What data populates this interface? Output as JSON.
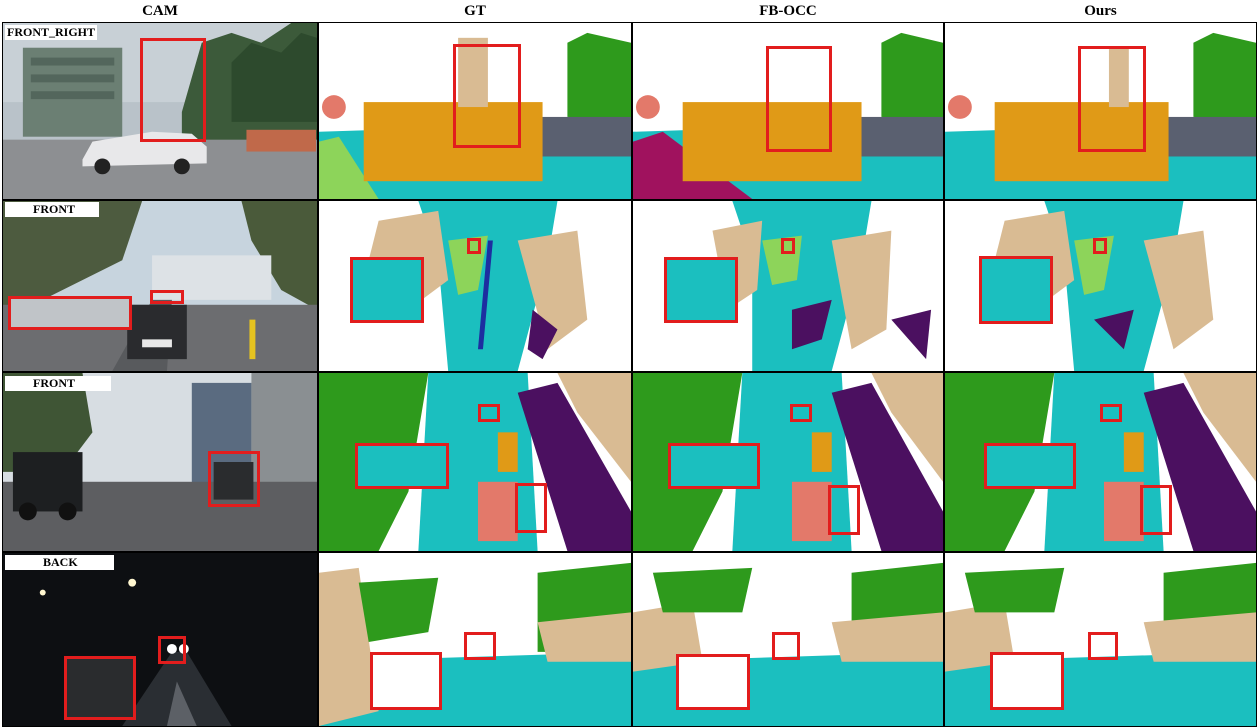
{
  "columns": [
    "CAM",
    "GT",
    "FB-OCC",
    "Ours"
  ],
  "rows": [
    {
      "label": "FRONT_RIGHT"
    },
    {
      "label": "FRONT"
    },
    {
      "label": "FRONT"
    },
    {
      "label": "BACK"
    }
  ],
  "colors": {
    "highlight_box": "#e21d1d",
    "vegetation": "#2e9a1c",
    "road": "#1bbfbf",
    "sidewalk": "#4b1060",
    "vehicle": "#e09a17",
    "manmade": "#d9bb93",
    "pedestrian": "#e3796a",
    "terrain": "#8dd45a",
    "barrier": "#5a6070"
  }
}
